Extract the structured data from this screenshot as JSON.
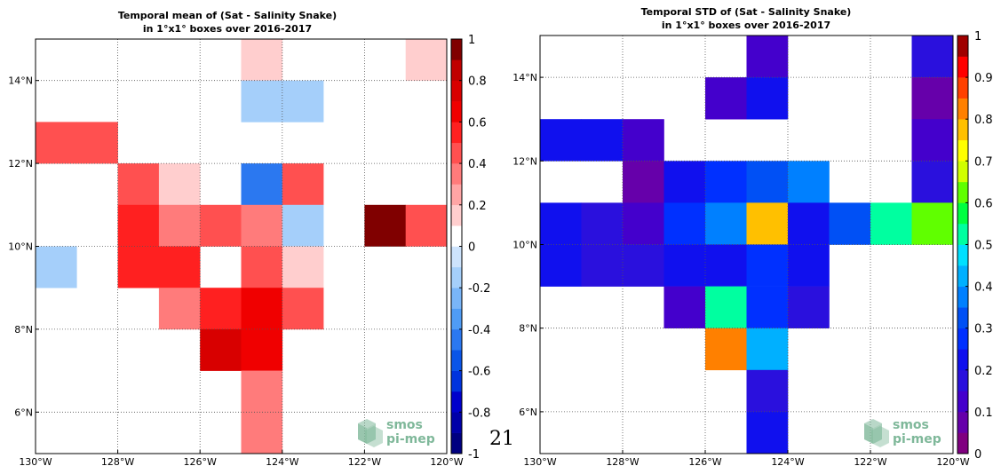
{
  "page_number": "21",
  "logo": {
    "line1": "smos",
    "line2": "pi-mep",
    "color": "#7fb89a"
  },
  "chart_data": [
    {
      "type": "heatmap",
      "title_lines": [
        "Temporal mean of (Sat - Salinity Snake)",
        "in 1°x1° boxes over 2016-2017"
      ],
      "xlim": [
        -130,
        -120
      ],
      "ylim": [
        5,
        15
      ],
      "x_ticks": [
        {
          "value": -130,
          "label": "130°W"
        },
        {
          "value": -128,
          "label": "128°W"
        },
        {
          "value": -126,
          "label": "126°W"
        },
        {
          "value": -124,
          "label": "124°W"
        },
        {
          "value": -122,
          "label": "122°W"
        },
        {
          "value": -120,
          "label": "120°W"
        }
      ],
      "y_ticks": [
        {
          "value": 6,
          "label": "6°N"
        },
        {
          "value": 8,
          "label": "8°N"
        },
        {
          "value": 10,
          "label": "10°N"
        },
        {
          "value": 12,
          "label": "12°N"
        },
        {
          "value": 14,
          "label": "14°N"
        }
      ],
      "grid": true,
      "colorbar": {
        "range": [
          -1,
          1
        ],
        "ticks": [
          {
            "value": 1,
            "label": "1"
          },
          {
            "value": 0.8,
            "label": "0.8"
          },
          {
            "value": 0.6,
            "label": "0.6"
          },
          {
            "value": 0.4,
            "label": "0.4"
          },
          {
            "value": 0.2,
            "label": "0.2"
          },
          {
            "value": 0,
            "label": "0"
          },
          {
            "value": -0.2,
            "label": "-0.2"
          },
          {
            "value": -0.4,
            "label": "-0.4"
          },
          {
            "value": -0.6,
            "label": "-0.6"
          },
          {
            "value": -0.8,
            "label": "-0.8"
          },
          {
            "value": -1,
            "label": "-1"
          }
        ],
        "colors": [
          "#000080",
          "#0000a8",
          "#0000cc",
          "#0033dd",
          "#0a55e8",
          "#2b78f0",
          "#4f9cf5",
          "#79b5f8",
          "#a5cffa",
          "#cde3fc",
          "#ffffff",
          "#ffcece",
          "#ffa5a5",
          "#ff7b7b",
          "#ff5050",
          "#ff2020",
          "#f00000",
          "#d80000",
          "#c00000",
          "#800000"
        ]
      },
      "cells": [
        {
          "lon": -125,
          "lat": 14,
          "value": 0.15
        },
        {
          "lon": -121,
          "lat": 14,
          "value": 0.15
        },
        {
          "lon": -125,
          "lat": 13,
          "value": -0.15
        },
        {
          "lon": -124,
          "lat": 13,
          "value": -0.15
        },
        {
          "lon": -130,
          "lat": 12,
          "value": 0.45
        },
        {
          "lon": -129,
          "lat": 12,
          "value": 0.45
        },
        {
          "lon": -128,
          "lat": 11,
          "value": 0.45
        },
        {
          "lon": -127,
          "lat": 11,
          "value": 0.15
        },
        {
          "lon": -125,
          "lat": 11,
          "value": -0.45
        },
        {
          "lon": -124,
          "lat": 11,
          "value": 0.45
        },
        {
          "lon": -128,
          "lat": 10,
          "value": 0.55
        },
        {
          "lon": -127,
          "lat": 10,
          "value": 0.35
        },
        {
          "lon": -126,
          "lat": 10,
          "value": 0.45
        },
        {
          "lon": -125,
          "lat": 10,
          "value": 0.35
        },
        {
          "lon": -124,
          "lat": 10,
          "value": -0.15
        },
        {
          "lon": -122,
          "lat": 10,
          "value": 0.9
        },
        {
          "lon": -121,
          "lat": 10,
          "value": 0.45
        },
        {
          "lon": -130,
          "lat": 9,
          "value": -0.15
        },
        {
          "lon": -128,
          "lat": 9,
          "value": 0.55
        },
        {
          "lon": -127,
          "lat": 9,
          "value": 0.55
        },
        {
          "lon": -125,
          "lat": 9,
          "value": 0.45
        },
        {
          "lon": -124,
          "lat": 9,
          "value": 0.15
        },
        {
          "lon": -127,
          "lat": 8,
          "value": 0.35
        },
        {
          "lon": -126,
          "lat": 8,
          "value": 0.55
        },
        {
          "lon": -125,
          "lat": 8,
          "value": 0.65
        },
        {
          "lon": -124,
          "lat": 8,
          "value": 0.45
        },
        {
          "lon": -126,
          "lat": 7,
          "value": 0.75
        },
        {
          "lon": -125,
          "lat": 7,
          "value": 0.65
        },
        {
          "lon": -125,
          "lat": 6,
          "value": 0.35
        },
        {
          "lon": -125,
          "lat": 5,
          "value": 0.35
        }
      ]
    },
    {
      "type": "heatmap",
      "title_lines": [
        "Temporal STD of (Sat - Salinity Snake)",
        "in 1°x1° boxes over 2016-2017"
      ],
      "xlim": [
        -130,
        -120
      ],
      "ylim": [
        5,
        15
      ],
      "x_ticks": [
        {
          "value": -130,
          "label": "130°W"
        },
        {
          "value": -128,
          "label": "128°W"
        },
        {
          "value": -126,
          "label": "126°W"
        },
        {
          "value": -124,
          "label": "124°W"
        },
        {
          "value": -122,
          "label": "122°W"
        },
        {
          "value": -120,
          "label": "120°W"
        }
      ],
      "y_ticks": [
        {
          "value": 6,
          "label": "6°N"
        },
        {
          "value": 8,
          "label": "8°N"
        },
        {
          "value": 10,
          "label": "10°N"
        },
        {
          "value": 12,
          "label": "12°N"
        },
        {
          "value": 14,
          "label": "14°N"
        }
      ],
      "grid": true,
      "colorbar": {
        "range": [
          0,
          1
        ],
        "ticks": [
          {
            "value": 1,
            "label": "1"
          },
          {
            "value": 0.9,
            "label": "0.9"
          },
          {
            "value": 0.8,
            "label": "0.8"
          },
          {
            "value": 0.7,
            "label": "0.7"
          },
          {
            "value": 0.6,
            "label": "0.6"
          },
          {
            "value": 0.5,
            "label": "0.5"
          },
          {
            "value": 0.4,
            "label": "0.4"
          },
          {
            "value": 0.3,
            "label": "0.3"
          },
          {
            "value": 0.2,
            "label": "0.2"
          },
          {
            "value": 0.1,
            "label": "0.1"
          },
          {
            "value": 0,
            "label": "0"
          }
        ],
        "colors": [
          "#800080",
          "#6600aa",
          "#4400cc",
          "#2a10dd",
          "#1010ee",
          "#0030ff",
          "#0050f5",
          "#0080ff",
          "#00b0ff",
          "#00e0ff",
          "#00ffa0",
          "#00ff40",
          "#60ff00",
          "#d0ff00",
          "#ffff00",
          "#ffc000",
          "#ff8000",
          "#ff4000",
          "#ff0000",
          "#a00000"
        ]
      },
      "cells": [
        {
          "lon": -125,
          "lat": 14,
          "value": 0.12
        },
        {
          "lon": -121,
          "lat": 14,
          "value": 0.17
        },
        {
          "lon": -126,
          "lat": 13,
          "value": 0.12
        },
        {
          "lon": -125,
          "lat": 13,
          "value": 0.2
        },
        {
          "lon": -121,
          "lat": 13,
          "value": 0.07
        },
        {
          "lon": -130,
          "lat": 12,
          "value": 0.2
        },
        {
          "lon": -129,
          "lat": 12,
          "value": 0.2
        },
        {
          "lon": -128,
          "lat": 12,
          "value": 0.12
        },
        {
          "lon": -121,
          "lat": 12,
          "value": 0.12
        },
        {
          "lon": -128,
          "lat": 11,
          "value": 0.07
        },
        {
          "lon": -127,
          "lat": 11,
          "value": 0.2
        },
        {
          "lon": -126,
          "lat": 11,
          "value": 0.27
        },
        {
          "lon": -125,
          "lat": 11,
          "value": 0.32
        },
        {
          "lon": -124,
          "lat": 11,
          "value": 0.37
        },
        {
          "lon": -121,
          "lat": 11,
          "value": 0.17
        },
        {
          "lon": -130,
          "lat": 10,
          "value": 0.22
        },
        {
          "lon": -129,
          "lat": 10,
          "value": 0.17
        },
        {
          "lon": -128,
          "lat": 10,
          "value": 0.12
        },
        {
          "lon": -127,
          "lat": 10,
          "value": 0.27
        },
        {
          "lon": -126,
          "lat": 10,
          "value": 0.38
        },
        {
          "lon": -125,
          "lat": 10,
          "value": 0.77
        },
        {
          "lon": -124,
          "lat": 10,
          "value": 0.22
        },
        {
          "lon": -123,
          "lat": 10,
          "value": 0.32
        },
        {
          "lon": -122,
          "lat": 10,
          "value": 0.52
        },
        {
          "lon": -121,
          "lat": 10,
          "value": 0.62
        },
        {
          "lon": -130,
          "lat": 9,
          "value": 0.22
        },
        {
          "lon": -129,
          "lat": 9,
          "value": 0.17
        },
        {
          "lon": -128,
          "lat": 9,
          "value": 0.17
        },
        {
          "lon": -127,
          "lat": 9,
          "value": 0.22
        },
        {
          "lon": -126,
          "lat": 9,
          "value": 0.22
        },
        {
          "lon": -125,
          "lat": 9,
          "value": 0.27
        },
        {
          "lon": -124,
          "lat": 9,
          "value": 0.22
        },
        {
          "lon": -127,
          "lat": 8,
          "value": 0.12
        },
        {
          "lon": -126,
          "lat": 8,
          "value": 0.52
        },
        {
          "lon": -125,
          "lat": 8,
          "value": 0.27
        },
        {
          "lon": -124,
          "lat": 8,
          "value": 0.17
        },
        {
          "lon": -126,
          "lat": 7,
          "value": 0.82
        },
        {
          "lon": -125,
          "lat": 7,
          "value": 0.42
        },
        {
          "lon": -125,
          "lat": 6,
          "value": 0.17
        },
        {
          "lon": -125,
          "lat": 5,
          "value": 0.22
        }
      ]
    }
  ]
}
